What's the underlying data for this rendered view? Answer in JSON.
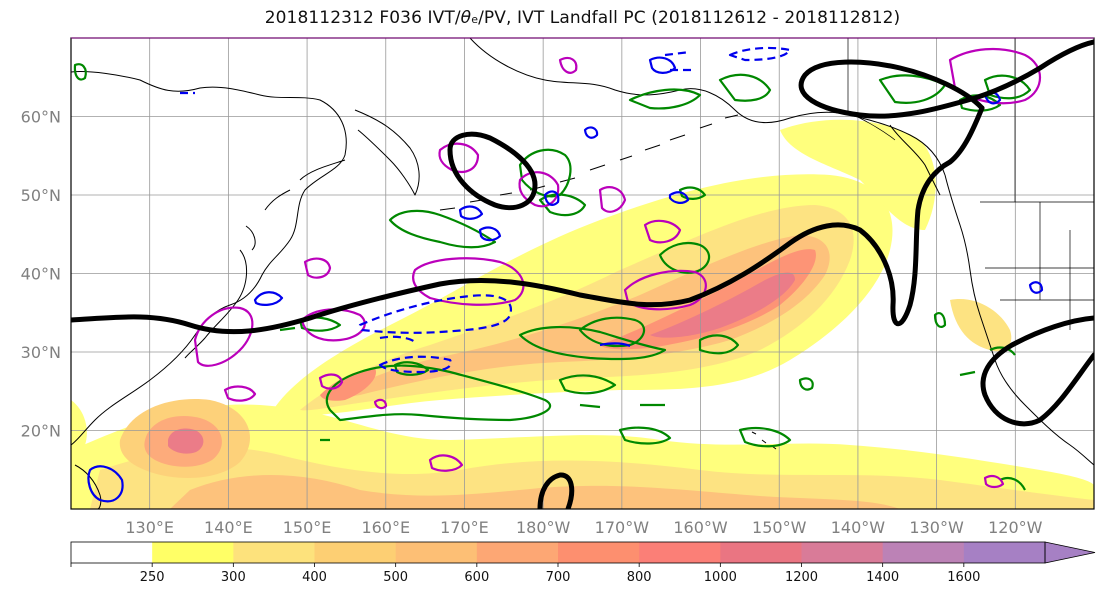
{
  "title": {
    "prefix": "2018112312 F036 IVT/",
    "theta": "θ",
    "sub": "e",
    "suffix": "/PV, IVT Landfall PC (2018112612 - 2018112812)"
  },
  "map": {
    "lat_ticks": [
      {
        "value": 60,
        "label": "60°N"
      },
      {
        "value": 50,
        "label": "50°N"
      },
      {
        "value": 40,
        "label": "40°N"
      },
      {
        "value": 30,
        "label": "30°N"
      },
      {
        "value": 20,
        "label": "20°N"
      }
    ],
    "lon_ticks": [
      {
        "value": 130,
        "label": "130°E"
      },
      {
        "value": 140,
        "label": "140°E"
      },
      {
        "value": 150,
        "label": "150°E"
      },
      {
        "value": 160,
        "label": "160°E"
      },
      {
        "value": 170,
        "label": "170°E"
      },
      {
        "value": 180,
        "label": "180°W"
      },
      {
        "value": 190,
        "label": "170°W"
      },
      {
        "value": 200,
        "label": "160°W"
      },
      {
        "value": 210,
        "label": "150°W"
      },
      {
        "value": 220,
        "label": "140°W"
      },
      {
        "value": 230,
        "label": "130°W"
      },
      {
        "value": 240,
        "label": "120°W"
      }
    ],
    "extent": {
      "lon_min": 120,
      "lon_max": 250,
      "lat_min": 10,
      "lat_max": 70
    },
    "grid": true
  },
  "colorbar": {
    "levels": [
      250,
      300,
      400,
      500,
      600,
      700,
      800,
      1000,
      1200,
      1400,
      1600
    ],
    "labels": [
      "250",
      "300",
      "400",
      "500",
      "600",
      "700",
      "800",
      "1000",
      "1200",
      "1400",
      "1600"
    ],
    "colors": [
      "#ffffff",
      "#ffff66",
      "#fde27c",
      "#fdcf73",
      "#fdbf75",
      "#fda774",
      "#fd8f6f",
      "#fb7f77",
      "#ea7582",
      "#d97b98",
      "#bc82b6",
      "#a680c4"
    ],
    "extend": "max"
  },
  "colors": {
    "jet_contour": "#000000",
    "pv_positive": "#bb00bb",
    "pv_negative": "#0000ee",
    "theta_e": "#008800",
    "coast": "#000000"
  }
}
